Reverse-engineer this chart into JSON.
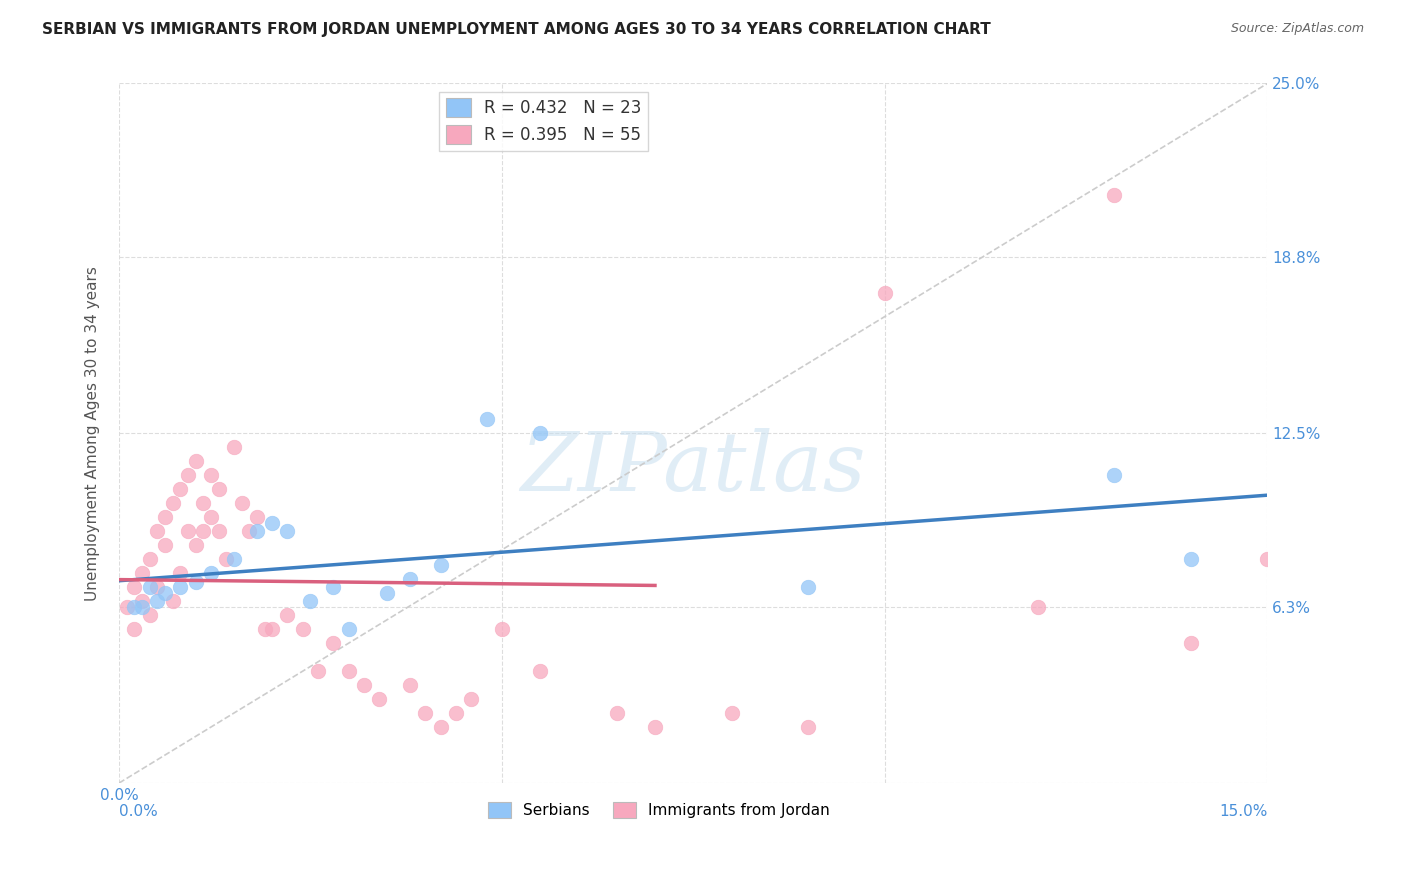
{
  "title": "SERBIAN VS IMMIGRANTS FROM JORDAN UNEMPLOYMENT AMONG AGES 30 TO 34 YEARS CORRELATION CHART",
  "source": "Source: ZipAtlas.com",
  "ylabel": "Unemployment Among Ages 30 to 34 years",
  "xlim": [
    0.0,
    0.15
  ],
  "ylim": [
    0.0,
    0.25
  ],
  "watermark": "ZIPatlas",
  "legend_serbian_R": "0.432",
  "legend_serbian_N": "23",
  "legend_jordan_R": "0.395",
  "legend_jordan_N": "55",
  "serbian_color": "#92c5f7",
  "jordan_color": "#f7a8be",
  "serbian_line_color": "#3e7fc1",
  "jordan_line_color": "#d9607e",
  "diagonal_color": "#cccccc",
  "serbian_scatter_x": [
    0.002,
    0.003,
    0.004,
    0.005,
    0.006,
    0.008,
    0.01,
    0.012,
    0.015,
    0.018,
    0.02,
    0.022,
    0.025,
    0.028,
    0.03,
    0.035,
    0.038,
    0.042,
    0.048,
    0.055,
    0.09,
    0.13,
    0.14
  ],
  "serbian_scatter_y": [
    0.063,
    0.063,
    0.07,
    0.065,
    0.068,
    0.07,
    0.072,
    0.075,
    0.08,
    0.09,
    0.093,
    0.09,
    0.065,
    0.07,
    0.055,
    0.068,
    0.073,
    0.078,
    0.13,
    0.125,
    0.07,
    0.11,
    0.08
  ],
  "jordan_scatter_x": [
    0.001,
    0.002,
    0.002,
    0.003,
    0.003,
    0.004,
    0.004,
    0.005,
    0.005,
    0.006,
    0.006,
    0.007,
    0.007,
    0.008,
    0.008,
    0.009,
    0.009,
    0.01,
    0.01,
    0.011,
    0.011,
    0.012,
    0.012,
    0.013,
    0.013,
    0.014,
    0.015,
    0.016,
    0.017,
    0.018,
    0.019,
    0.02,
    0.022,
    0.024,
    0.026,
    0.028,
    0.03,
    0.032,
    0.034,
    0.038,
    0.04,
    0.042,
    0.044,
    0.046,
    0.05,
    0.055,
    0.065,
    0.07,
    0.08,
    0.09,
    0.1,
    0.12,
    0.13,
    0.14,
    0.15
  ],
  "jordan_scatter_y": [
    0.063,
    0.07,
    0.055,
    0.075,
    0.065,
    0.08,
    0.06,
    0.09,
    0.07,
    0.095,
    0.085,
    0.1,
    0.065,
    0.105,
    0.075,
    0.11,
    0.09,
    0.115,
    0.085,
    0.09,
    0.1,
    0.095,
    0.11,
    0.09,
    0.105,
    0.08,
    0.12,
    0.1,
    0.09,
    0.095,
    0.055,
    0.055,
    0.06,
    0.055,
    0.04,
    0.05,
    0.04,
    0.035,
    0.03,
    0.035,
    0.025,
    0.02,
    0.025,
    0.03,
    0.055,
    0.04,
    0.025,
    0.02,
    0.025,
    0.02,
    0.175,
    0.063,
    0.21,
    0.05,
    0.08
  ],
  "grid_color": "#dddddd",
  "right_tick_color": "#4a90d9",
  "left_tick_color": "#555555"
}
